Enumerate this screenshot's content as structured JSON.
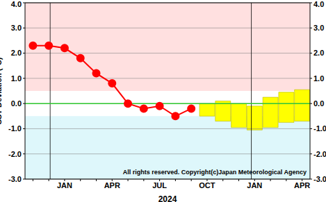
{
  "chart_data": {
    "type": "line",
    "y_label": "SST Deviation (°C)",
    "x_label": "2024",
    "annotation": "All rights reserved. Copyright(c)Japan Meteorological Agency",
    "categories": [
      null,
      null,
      "JAN",
      null,
      null,
      "APR",
      null,
      null,
      "JUL",
      null,
      null,
      "OCT",
      null,
      null,
      "JAN",
      null,
      null,
      "APR"
    ],
    "series": [
      {
        "type": "line",
        "color": "#ff0000",
        "marker": "circle",
        "values": [
          2.3,
          2.3,
          2.2,
          1.8,
          1.2,
          0.8,
          0.0,
          -0.2,
          -0.1,
          -0.5,
          -0.2,
          null,
          null,
          null,
          null,
          null,
          null,
          null
        ]
      },
      {
        "type": "bar",
        "color": "#ffff00",
        "values": [
          null,
          null,
          null,
          null,
          null,
          null,
          null,
          null,
          null,
          null,
          null,
          [
            -0.5,
            0.0
          ],
          [
            -0.7,
            0.1
          ],
          [
            -0.95,
            0.0
          ],
          [
            -1.05,
            -0.1
          ],
          [
            -0.95,
            0.25
          ],
          [
            -0.75,
            0.45
          ],
          [
            -0.7,
            0.55
          ]
        ]
      }
    ],
    "ylim": [
      -3.0,
      4.0
    ],
    "yticks": [
      {
        "value": -3,
        "label": "-3.0"
      },
      {
        "value": -2,
        "label": "-2.0"
      },
      {
        "value": -1,
        "label": "-1.0"
      },
      {
        "value": 0,
        "label": "0.0"
      },
      {
        "value": 1,
        "label": "1.0"
      },
      {
        "value": 2,
        "label": "2.0"
      },
      {
        "value": 3,
        "label": "3.0"
      },
      {
        "value": 4,
        "label": "4.0"
      }
    ],
    "bands": [
      {
        "from": 0.5,
        "to": 4.0,
        "color": "#ffe0e0"
      },
      {
        "from": -3.0,
        "to": -0.5,
        "color": "#def7fb"
      }
    ],
    "reference_line": {
      "value": 0,
      "color": "#33cc33"
    },
    "grid": true
  }
}
